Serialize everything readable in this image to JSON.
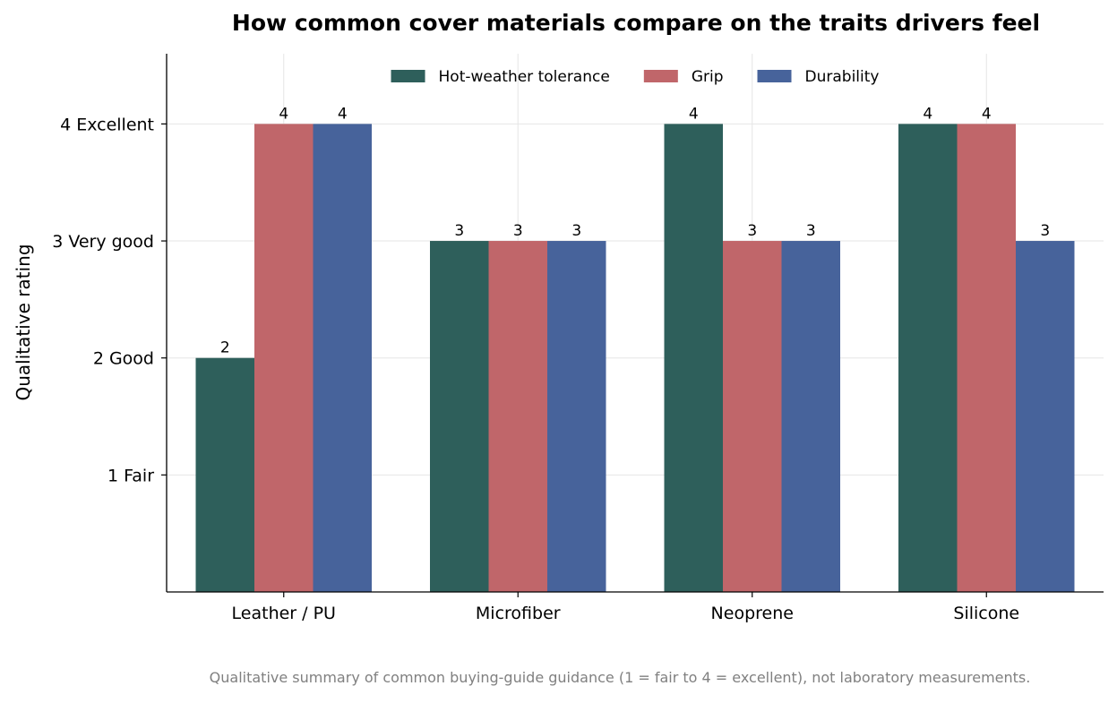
{
  "chart_data": {
    "type": "bar",
    "title": "How common cover materials compare on the traits drivers feel",
    "xlabel": "",
    "ylabel": "Qualitative rating",
    "ylim": [
      0,
      4.6
    ],
    "yticks": [
      {
        "value": 1,
        "label": "1 Fair"
      },
      {
        "value": 2,
        "label": "2 Good"
      },
      {
        "value": 3,
        "label": "3 Very good"
      },
      {
        "value": 4,
        "label": "4 Excellent"
      }
    ],
    "categories": [
      "Leather / PU",
      "Microfiber",
      "Neoprene",
      "Silicone"
    ],
    "series": [
      {
        "name": "Hot-weather tolerance",
        "color": "#2e5f5b",
        "values": [
          2,
          3,
          4,
          4
        ]
      },
      {
        "name": "Grip",
        "color": "#c0666a",
        "values": [
          4,
          3,
          3,
          4
        ]
      },
      {
        "name": "Durability",
        "color": "#47639b",
        "values": [
          4,
          3,
          3,
          3
        ]
      }
    ],
    "grid": true,
    "legend": "top-center",
    "footnote": "Qualitative summary of common buying-guide guidance (1 = fair to 4 = excellent), not laboratory measurements."
  }
}
